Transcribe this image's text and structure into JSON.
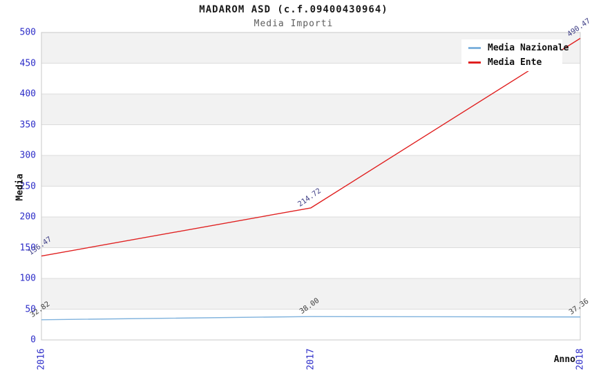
{
  "chart": {
    "title": "MADAROM ASD (c.f.09400430964)",
    "subtitle": "Media Importi",
    "y_axis_label": "Media",
    "x_axis_label": "Anno"
  },
  "legend": {
    "items": [
      {
        "label": "Media Nazionale",
        "color": "#7fb2dd"
      },
      {
        "label": "Media Ente",
        "color": "#e01f1f"
      }
    ]
  },
  "chart_data": {
    "type": "line",
    "title": "MADAROM ASD (c.f.09400430964)",
    "subtitle": "Media Importi",
    "xlabel": "Anno",
    "ylabel": "Media",
    "categories": [
      "2016",
      "2017",
      "2018"
    ],
    "series": [
      {
        "name": "Media Nazionale",
        "color": "#7fb2dd",
        "values": [
          32.82,
          38.0,
          37.36
        ],
        "point_labels": [
          "32.82",
          "38.00",
          "37.36"
        ],
        "label_color": "#3f3f3f"
      },
      {
        "name": "Media Ente",
        "color": "#e01f1f",
        "values": [
          136.47,
          214.72,
          490.47
        ],
        "point_labels": [
          "136.47",
          "214.72",
          "490.47"
        ],
        "label_color": "#3d3d85"
      }
    ],
    "ylim": [
      0,
      500
    ],
    "y_ticks": [
      0,
      50,
      100,
      150,
      200,
      250,
      300,
      350,
      400,
      450,
      500
    ],
    "grid": "horizontal",
    "band_fill": "alternating-gray",
    "band_color": "#f2f2f2",
    "grid_color": "#dcdcdc",
    "frame_color": "#c8c8c8",
    "tick_color": "#2d2dc8",
    "legend_position": "top-right"
  }
}
